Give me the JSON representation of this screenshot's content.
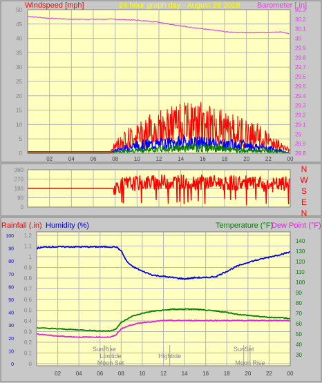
{
  "header": {
    "title": "24 hour graph day - August 26 2018",
    "left_label": "Windspeed [mph]",
    "right_label": "Barometer [.in]"
  },
  "compass": [
    "N",
    "W",
    "S",
    "E",
    "N"
  ],
  "bottom_labels": {
    "rainfall": "Rainfall (.in)",
    "humidity": "Humidity (%)",
    "temperature": "Temperature (°F)",
    "dewpoint": "Dew Point (°F)"
  },
  "events": [
    {
      "label": "SunRise",
      "hour": 6.4,
      "row": 0
    },
    {
      "label": "Lowtide",
      "hour": 7.0,
      "row": 1
    },
    {
      "label": "Moon Set",
      "hour": 7.0,
      "row": 2
    },
    {
      "label": "Hightide",
      "hour": 12.6,
      "row": 1
    },
    {
      "label": "SunSet",
      "hour": 19.6,
      "row": 0
    },
    {
      "label": "Moon Rise",
      "hour": 20.2,
      "row": 2
    }
  ],
  "colors": {
    "background": "#c8c8c8",
    "plot_bg": "#ffffc0",
    "grid": "#b4b4b4",
    "wind": "#ff0000",
    "gust": "#0000ff",
    "avg": "#008000",
    "barometer": "#e040e0",
    "humidity": "#0000e0",
    "temperature": "#008000",
    "dewpoint": "#e020e0",
    "title": "#ffff00",
    "axis_text": "#808080"
  },
  "chart_data": [
    {
      "type": "line",
      "title": "24 hour graph day - August 26 2018",
      "x_ticks": [
        "02",
        "04",
        "06",
        "08",
        "10",
        "12",
        "14",
        "16",
        "18",
        "20",
        "22",
        "00"
      ],
      "xlim": [
        0,
        24
      ],
      "y_left": {
        "label": "Windspeed [mph]",
        "lim": [
          0,
          50
        ],
        "ticks": [
          "0",
          "5",
          "10",
          "15",
          "20",
          "25",
          "30",
          "35",
          "40",
          "45",
          "50"
        ]
      },
      "y_right": {
        "label": "Barometer [.in]",
        "lim": [
          28.8,
          30.3
        ],
        "ticks": [
          "28.8",
          "28.9",
          "29",
          "29.1",
          "29.2",
          "29.3",
          "29.4",
          "29.5",
          "29.6",
          "29.7",
          "29.8",
          "29.9",
          "30",
          "30.1",
          "30.2",
          "30.3"
        ]
      },
      "series": [
        {
          "axis": "right",
          "x": [
            0,
            2,
            4,
            6,
            8,
            10,
            12,
            14,
            16,
            18,
            19,
            20,
            21,
            22,
            23,
            24
          ],
          "y": [
            30.23,
            30.21,
            30.2,
            30.2,
            30.2,
            30.19,
            30.17,
            30.13,
            30.1,
            30.07,
            30.06,
            30.06,
            30.06,
            30.06,
            30.07,
            30.05
          ]
        },
        {
          "axis": "left",
          "x": [
            0,
            7.5,
            8,
            9,
            10,
            11,
            12,
            13,
            14,
            15,
            16,
            17,
            18,
            19,
            20,
            21,
            22,
            23,
            23.5,
            24
          ],
          "y": [
            0,
            0,
            3,
            6,
            7,
            9,
            10,
            11,
            12,
            12,
            12,
            11,
            10,
            9,
            8,
            7,
            5,
            3,
            2,
            1
          ]
        },
        {
          "axis": "left",
          "x": [
            0,
            7.5,
            8,
            10,
            12,
            14,
            16,
            18,
            20,
            22,
            23,
            24
          ],
          "y": [
            0,
            0,
            1,
            3,
            3.5,
            4,
            4,
            3.5,
            3,
            2,
            1,
            0
          ]
        },
        {
          "axis": "left",
          "x": [
            0,
            7.5,
            8,
            10,
            12,
            14,
            16,
            18,
            20,
            22,
            23,
            24
          ],
          "y": [
            0,
            0,
            0.5,
            1,
            1.5,
            2,
            2,
            1.5,
            1,
            1,
            0.5,
            0
          ]
        }
      ]
    },
    {
      "type": "line",
      "x_ticks": [
        "02",
        "04",
        "06",
        "08",
        "10",
        "12",
        "14",
        "16",
        "18",
        "20",
        "22",
        "00"
      ],
      "xlim": [
        0,
        24
      ],
      "y_left": {
        "lim": [
          0,
          360
        ],
        "ticks": [
          "0",
          "90",
          "180",
          "270",
          "360"
        ]
      },
      "series": [
        {
          "x": [
            0,
            7.8,
            8.5,
            10,
            12,
            14,
            16,
            18,
            20,
            22,
            23,
            24
          ],
          "y": [
            180,
            180,
            210,
            230,
            240,
            245,
            240,
            235,
            230,
            210,
            215,
            230
          ]
        }
      ]
    },
    {
      "type": "line",
      "x_ticks": [
        "02",
        "04",
        "06",
        "08",
        "10",
        "12",
        "14",
        "16",
        "18",
        "20",
        "22",
        "00"
      ],
      "xlim": [
        0,
        24
      ],
      "y_humidity": {
        "label": "Humidity (%)",
        "lim": [
          0,
          100
        ],
        "ticks": [
          "0",
          "10",
          "20",
          "30",
          "40",
          "50",
          "60",
          "70",
          "80",
          "90",
          "100"
        ]
      },
      "y_rain": {
        "label": "Rainfall (.in)",
        "lim": [
          0,
          1.2
        ],
        "ticks": [
          "0",
          "0.1",
          "0.2",
          "0.3",
          "0.4",
          "0.5",
          "0.6",
          "0.7",
          "0.8",
          "0.9",
          "1",
          "1.1",
          "1.2"
        ]
      },
      "y_temp": {
        "label": "Temperature (°F)",
        "lim": [
          30,
          145
        ],
        "ticks": [
          "30",
          "40",
          "50",
          "60",
          "70",
          "80",
          "90",
          "100",
          "110",
          "120",
          "130",
          "140"
        ]
      },
      "series": [
        {
          "name": "Humidity (%)",
          "axis": "humidity",
          "x": [
            0,
            1,
            4,
            6,
            7.5,
            8,
            8.5,
            9,
            10,
            11,
            12,
            13,
            14,
            15,
            16,
            17,
            18,
            19,
            20,
            21,
            22,
            23,
            24
          ],
          "y": [
            90,
            91,
            91,
            91,
            91,
            88,
            80,
            76,
            72,
            69,
            68,
            67,
            66,
            67,
            67,
            68,
            72,
            76,
            79,
            81,
            83,
            85,
            87
          ]
        },
        {
          "name": "Temperature (°F)",
          "axis": "temp",
          "x": [
            0,
            2,
            4,
            6,
            7,
            7.5,
            8,
            9,
            10,
            11,
            12,
            13,
            14,
            15,
            16,
            17,
            18,
            19,
            20,
            21,
            22,
            23,
            24
          ],
          "y": [
            56,
            55,
            54,
            53,
            53,
            55,
            61,
            67,
            70,
            72,
            73,
            74,
            74,
            74,
            73,
            72,
            71,
            69,
            68,
            67,
            66,
            66,
            65
          ]
        },
        {
          "name": "Dew Point (°F)",
          "axis": "temp",
          "x": [
            0,
            2,
            4,
            6,
            7,
            7.5,
            8,
            9,
            10,
            11,
            12,
            13,
            14,
            15,
            16,
            17,
            18,
            19,
            20,
            21,
            22,
            23,
            24
          ],
          "y": [
            50,
            48,
            47,
            47,
            47,
            49,
            55,
            59,
            61,
            62,
            63,
            63,
            63,
            63,
            63,
            63,
            63,
            63,
            63,
            63,
            63,
            63,
            63
          ]
        }
      ]
    }
  ]
}
